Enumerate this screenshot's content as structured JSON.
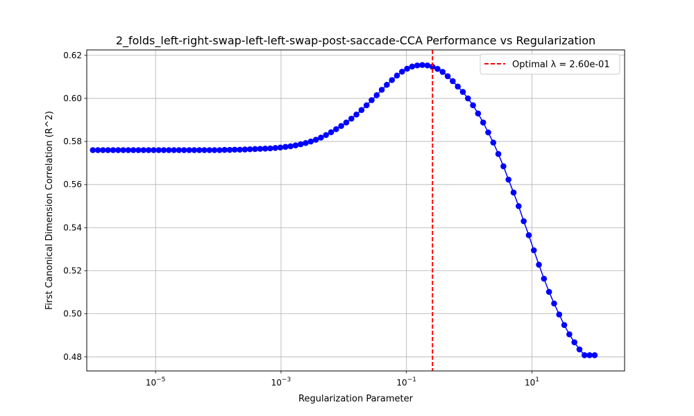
{
  "chart_data": {
    "type": "line",
    "title": "2_folds_left-right-swap-left-left-swap-post-saccade-CCA Performance vs Regularization",
    "xlabel": "Regularization Parameter",
    "ylabel": "First Canonical Dimension Correlation (R^2)",
    "x_scale": "log",
    "x_range": [
      8e-07,
      300
    ],
    "ylim": [
      0.4735,
      0.6225
    ],
    "x_ticks": [
      {
        "value": 1e-05,
        "base": "10",
        "exp": "−5"
      },
      {
        "value": 0.001,
        "base": "10",
        "exp": "−3"
      },
      {
        "value": 0.1,
        "base": "10",
        "exp": "−1"
      },
      {
        "value": 10,
        "base": "10",
        "exp": "1"
      }
    ],
    "y_ticks": [
      0.48,
      0.5,
      0.52,
      0.54,
      0.56,
      0.58,
      0.6,
      0.62
    ],
    "y_tick_labels": [
      "0.48",
      "0.50",
      "0.52",
      "0.54",
      "0.56",
      "0.58",
      "0.60",
      "0.62"
    ],
    "grid": true,
    "legend_position": "top-right",
    "series": [
      {
        "color": "#0000ff",
        "marker": "circle",
        "x_log10_start": -6,
        "x_log10_end": 2,
        "x_count": 100,
        "y": [
          0.576,
          0.576,
          0.576,
          0.576,
          0.576,
          0.576,
          0.576,
          0.576,
          0.576,
          0.576,
          0.576,
          0.576,
          0.576,
          0.576,
          0.576,
          0.576,
          0.576,
          0.576,
          0.576,
          0.576,
          0.576,
          0.576,
          0.576,
          0.576,
          0.576,
          0.576,
          0.5761,
          0.5761,
          0.5762,
          0.5762,
          0.5763,
          0.5764,
          0.5765,
          0.5766,
          0.5767,
          0.5768,
          0.577,
          0.5772,
          0.5775,
          0.5778,
          0.5782,
          0.5787,
          0.5793,
          0.58,
          0.5808,
          0.5818,
          0.583,
          0.5843,
          0.5857,
          0.5872,
          0.5888,
          0.5906,
          0.5925,
          0.5946,
          0.5968,
          0.5992,
          0.6015,
          0.604,
          0.6063,
          0.6085,
          0.6106,
          0.6124,
          0.6138,
          0.6148,
          0.6153,
          0.6155,
          0.6153,
          0.6147,
          0.6137,
          0.6123,
          0.6103,
          0.608,
          0.6055,
          0.603,
          0.6,
          0.5968,
          0.593,
          0.5888,
          0.5842,
          0.5795,
          0.5742,
          0.5685,
          0.5623,
          0.5563,
          0.55,
          0.543,
          0.5365,
          0.5295,
          0.5228,
          0.5163,
          0.5102,
          0.5048,
          0.4997,
          0.4948,
          0.4905,
          0.4868,
          0.4835,
          0.4808,
          0.4808,
          0.4808
        ]
      }
    ],
    "optimal_line": {
      "x": 0.26,
      "color": "#ff0000",
      "style": "dashed",
      "label": "Optimal λ = 2.60e-01"
    }
  }
}
